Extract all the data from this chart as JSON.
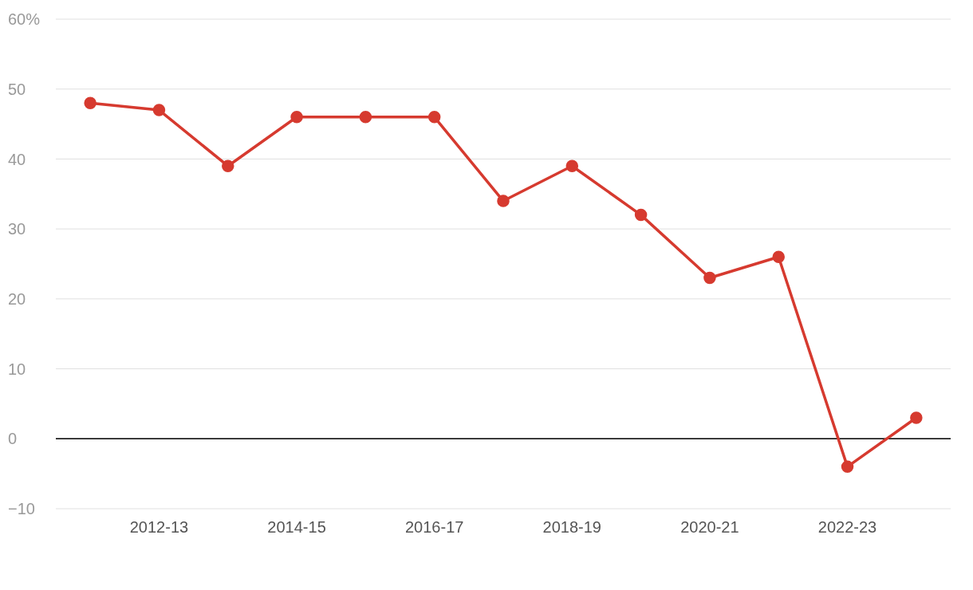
{
  "chart_data": {
    "type": "line",
    "categories": [
      null,
      "2012-13",
      null,
      "2014-15",
      null,
      "2016-17",
      null,
      "2018-19",
      null,
      "2020-21",
      null,
      "2022-23",
      null
    ],
    "series": [
      {
        "color": "#d63a2f",
        "values": [
          48,
          47,
          39,
          46,
          46,
          46,
          34,
          39,
          32,
          23,
          26,
          -4,
          3
        ]
      }
    ],
    "ylim": [
      -10,
      60
    ],
    "yticks": [
      -10,
      0,
      10,
      20,
      30,
      40,
      50,
      {
        "value": 60,
        "label": "60%"
      }
    ],
    "ref_lines": [
      {
        "axis": "y",
        "value": 0,
        "color": "#000000"
      }
    ],
    "grid": "y",
    "marker": "circle",
    "line_style": "solid",
    "legend": false
  }
}
